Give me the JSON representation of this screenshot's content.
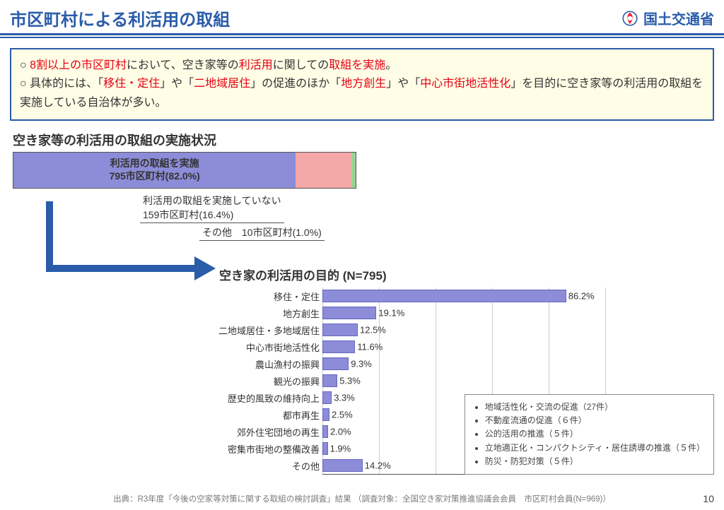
{
  "header": {
    "title": "市区町村による利活用の取組",
    "ministry": "国土交通省"
  },
  "summary": {
    "line1_a": "○ ",
    "line1_b": "8割以上の市区町村",
    "line1_c": "において、空き家等の",
    "line1_d": "利活用",
    "line1_e": "に関しての",
    "line1_f": "取組を実施",
    "line1_g": "。",
    "line2_a": "○ 具体的には、「",
    "line2_b": "移住・定住",
    "line2_c": "」や「",
    "line2_d": "二地域居住",
    "line2_e": "」の促進のほか「",
    "line2_f": "地方創生",
    "line2_g": "」や「",
    "line2_h": "中心市街地活性化",
    "line2_i": "」を目的に空き家等の利活用の取組を実施している自治体が多い。"
  },
  "stacked": {
    "title": "空き家等の利活用の取組の実施状況",
    "segments": [
      {
        "label_line1": "利活用の取組を実施",
        "label_line2": "795市区町村(82.0%)",
        "value": 82.0,
        "color": "#8c8cd8"
      },
      {
        "label_line1": "",
        "label_line2": "",
        "value": 16.4,
        "color": "#f4a8a8"
      },
      {
        "label_line1": "",
        "label_line2": "",
        "value": 1.0,
        "color": "#8fd88f"
      }
    ],
    "note1": "利活用の取組を実施していない",
    "note1b": "159市区町村(16.4%)",
    "note2": "その他　10市区町村(1.0%)"
  },
  "purpose": {
    "title": "空き家の利活用の目的   (N=795)",
    "max": 100,
    "unit": "%",
    "bar_color": "#8c8cd8",
    "items": [
      {
        "label": "移住・定住",
        "value": 86.2
      },
      {
        "label": "地方創生",
        "value": 19.1
      },
      {
        "label": "二地域居住・多地域居住",
        "value": 12.5
      },
      {
        "label": "中心市街地活性化",
        "value": 11.6
      },
      {
        "label": "農山漁村の振興",
        "value": 9.3
      },
      {
        "label": "観光の振興",
        "value": 5.3
      },
      {
        "label": "歴史的風致の維持向上",
        "value": 3.3
      },
      {
        "label": "都市再生",
        "value": 2.5
      },
      {
        "label": "郊外住宅団地の再生",
        "value": 2.0
      },
      {
        "label": "密集市街地の整備改善",
        "value": 1.9
      },
      {
        "label": "その他",
        "value": 14.2
      }
    ]
  },
  "other_box": {
    "items": [
      "地域活性化・交流の促進（27件）",
      "不動産流通の促進（６件）",
      "公的活用の推進（５件）",
      "立地適正化・コンパクトシティ・居住誘導の推進（５件）",
      "防災・防犯対策（５件）"
    ]
  },
  "footnote": "出典：R3年度「今後の空家等対策に関する取組の検討調査」結果 （調査対象：全国空き家対策推進協議会会員　市区町村会員(N=969)）",
  "page": "10",
  "arrow_color": "#2a5caa"
}
